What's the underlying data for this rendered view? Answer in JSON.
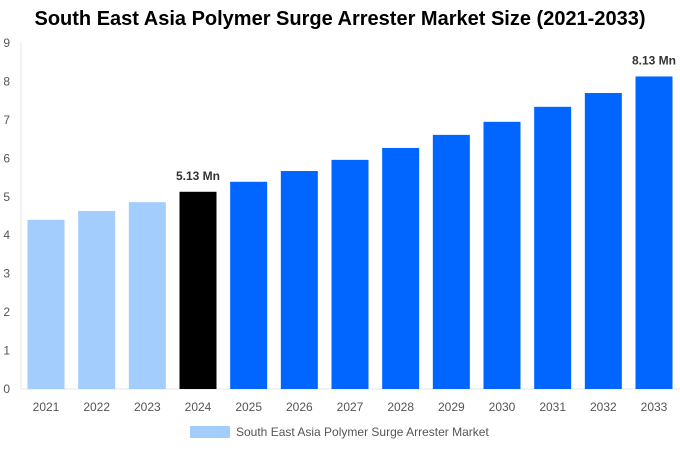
{
  "chart_data": {
    "type": "bar",
    "title": "South East Asia Polymer Surge Arrester Market Size (2021-2033)",
    "categories": [
      "2021",
      "2022",
      "2023",
      "2024",
      "2025",
      "2026",
      "2027",
      "2028",
      "2029",
      "2030",
      "2031",
      "2032",
      "2033"
    ],
    "series": [
      {
        "name": "South East Asia Polymer Surge Arrester Market",
        "values": [
          4.4,
          4.63,
          4.86,
          5.13,
          5.39,
          5.67,
          5.96,
          6.27,
          6.61,
          6.95,
          7.34,
          7.7,
          8.13
        ]
      }
    ],
    "bar_colors": [
      "#a3cdfd",
      "#a3cdfd",
      "#a3cdfd",
      "#000000",
      "#0066ff",
      "#0066ff",
      "#0066ff",
      "#0066ff",
      "#0066ff",
      "#0066ff",
      "#0066ff",
      "#0066ff",
      "#0066ff"
    ],
    "data_labels": {
      "3": "5.13 Mn",
      "12": "8.13 Mn"
    },
    "ylim": [
      0,
      9
    ],
    "yticks": [
      0,
      1,
      2,
      3,
      4,
      5,
      6,
      7,
      8,
      9
    ],
    "grid": false,
    "legend_position": "bottom",
    "xlabel": "",
    "ylabel": ""
  }
}
